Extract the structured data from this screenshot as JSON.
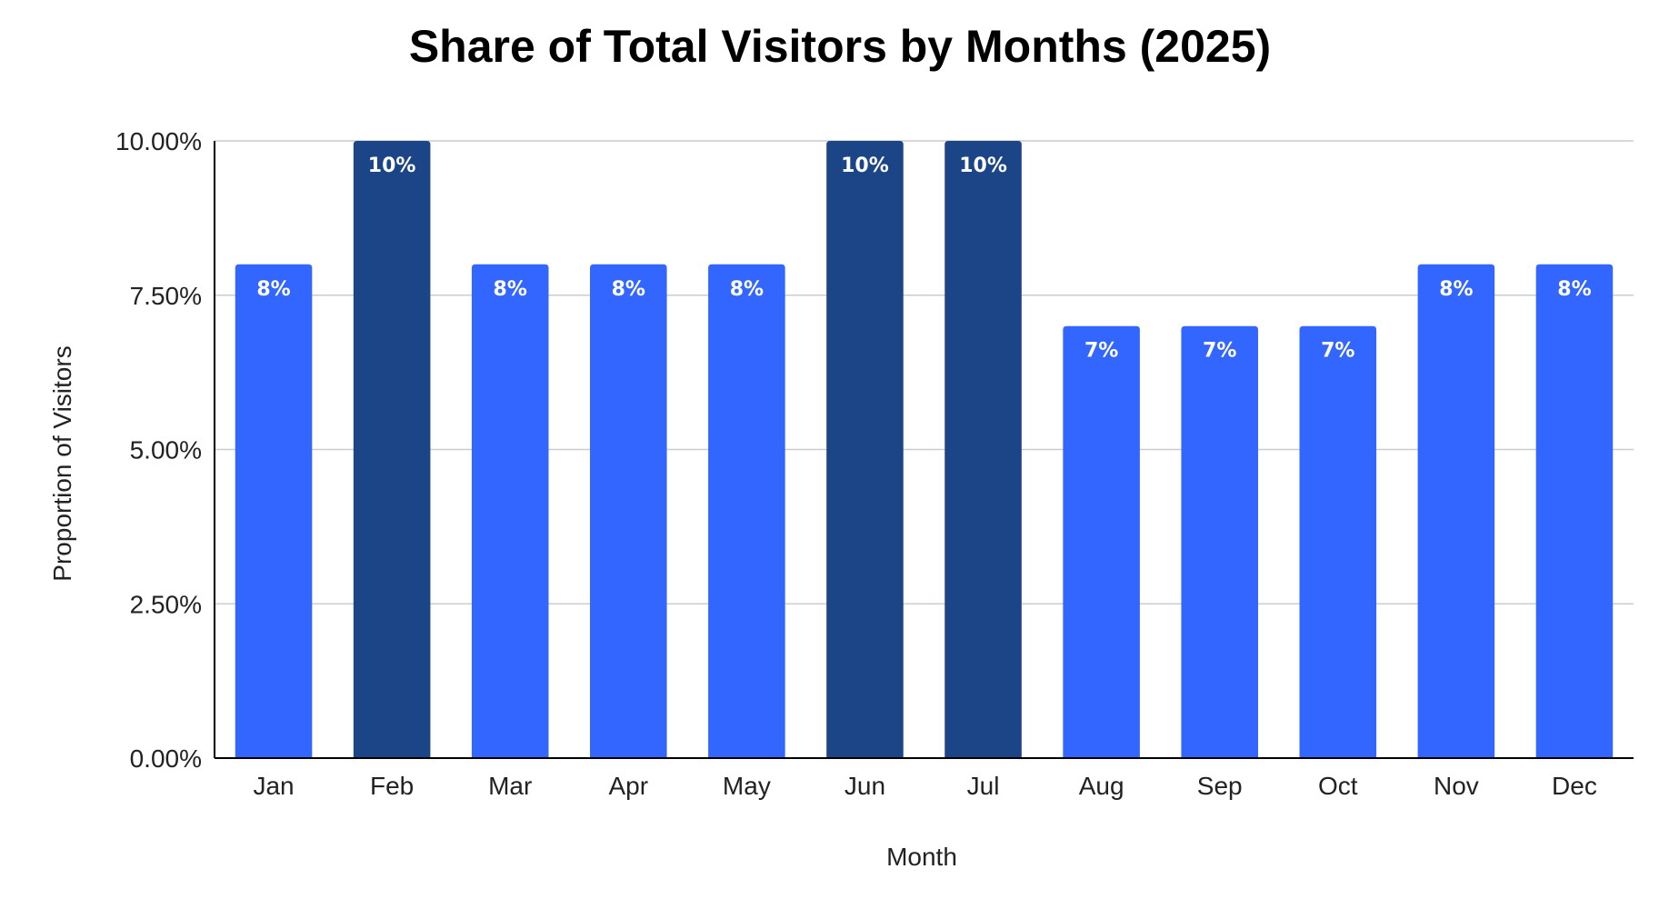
{
  "chart_data": {
    "type": "bar",
    "title": "Share of Total Visitors by Months (2025)",
    "xlabel": "Month",
    "ylabel": "Proportion of Visitors",
    "categories": [
      "Jan",
      "Feb",
      "Mar",
      "Apr",
      "May",
      "Jun",
      "Jul",
      "Aug",
      "Sep",
      "Oct",
      "Nov",
      "Dec"
    ],
    "values": [
      8,
      10,
      8,
      8,
      8,
      10,
      10,
      7,
      7,
      7,
      8,
      8
    ],
    "data_labels": [
      "8%",
      "10%",
      "8%",
      "8%",
      "8%",
      "10%",
      "10%",
      "7%",
      "7%",
      "7%",
      "8%",
      "8%"
    ],
    "ylim": [
      0,
      10
    ],
    "y_ticks": [
      0,
      2.5,
      5,
      7.5,
      10
    ],
    "y_tick_labels": [
      "0.00%",
      "2.50%",
      "5.00%",
      "7.50%",
      "10.00%"
    ],
    "grid": true,
    "legend": "none",
    "colors": {
      "bar": "#3366ff",
      "bar_highlight": "#1c4587",
      "label": "#ffffff",
      "grid": "#cccccc",
      "axis": "#000000"
    },
    "highlighted": [
      "Feb",
      "Jun",
      "Jul"
    ]
  }
}
